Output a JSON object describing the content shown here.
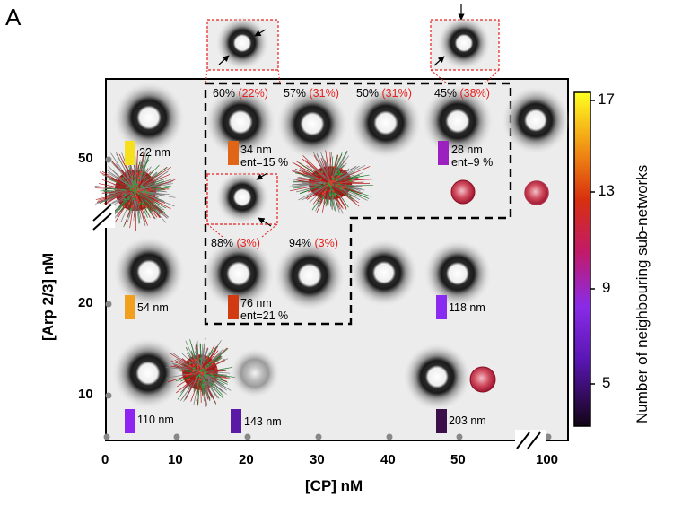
{
  "panel_label": "A",
  "x_axis": {
    "title": "[CP] nM",
    "ticks": [
      "0",
      "10",
      "20",
      "30",
      "40",
      "50",
      "100"
    ]
  },
  "y_axis": {
    "title": "[Arp 2/3] nM",
    "ticks": [
      "10",
      "20",
      "50"
    ]
  },
  "colorbar": {
    "title": "Number of neighbouring sub-networks",
    "ticks": [
      "5",
      "9",
      "13",
      "17"
    ]
  },
  "row50_labels": [
    {
      "pct": "60%",
      "paren": "(22%)"
    },
    {
      "pct": "57%",
      "paren": "(31%)"
    },
    {
      "pct": "50%",
      "paren": "(31%)"
    },
    {
      "pct": "45%",
      "paren": "(38%)"
    }
  ],
  "row20_labels": [
    {
      "pct": "88%",
      "paren": "(3%)"
    },
    {
      "pct": "94%",
      "paren": "(3%)"
    }
  ],
  "size_labels": {
    "r50_cp0": {
      "line1": "22 nm",
      "color": "#f6df1c"
    },
    "r50_cp20": {
      "line1": "34 nm",
      "line2": "ent=15 %",
      "color": "#e06516"
    },
    "r50_cp50": {
      "line1": "28 nm",
      "line2": "ent=9 %",
      "color": "#9c1fbf"
    },
    "r20_cp0": {
      "line1": "54 nm",
      "color": "#f0a01e"
    },
    "r20_cp20": {
      "line1": "76 nm",
      "line2": "ent=21 %",
      "color": "#d13b12"
    },
    "r20_cp50": {
      "line1": "118 nm",
      "color": "#8a2bf2"
    },
    "r10_cp0": {
      "line1": "110 nm",
      "color": "#8f24f2"
    },
    "r10_cp20": {
      "line1": "143 nm",
      "color": "#5a1aa6"
    },
    "r10_cp50": {
      "line1": "203 nm",
      "color": "#3a0f4a"
    }
  },
  "colors": {
    "dashed_region": "#000000",
    "inset_border": "#e8201e",
    "percent_red": "#e8201e"
  }
}
